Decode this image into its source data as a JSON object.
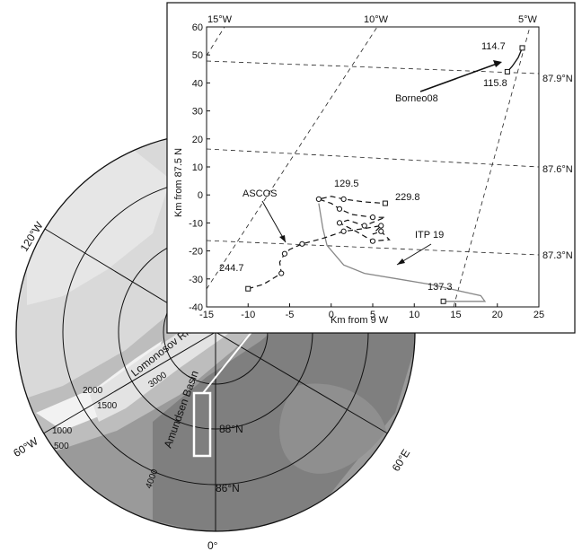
{
  "map": {
    "meridian_labels": [
      "120°W",
      "60°W",
      "0°",
      "60°E"
    ],
    "latitude_labels": [
      "88°N",
      "86°N"
    ],
    "feature_labels": [
      "Lomonosov Ridge",
      "Amundsen Basin"
    ],
    "depth_labels": [
      "2000",
      "1500",
      "1000",
      "500",
      "3000",
      "4000"
    ],
    "colors": {
      "shelf": "#f2f2f2",
      "slope_light": "#d9d9d9",
      "slope_mid": "#bdbdbd",
      "basin_mid": "#9a9a9a",
      "basin_deep": "#7f7f7f",
      "frame": "#ffffff"
    }
  },
  "inset": {
    "top_lon_labels": [
      "15°W",
      "10°W",
      "5°W"
    ],
    "right_lat_labels": [
      "87.9°N",
      "87.6°N",
      "87.3°N"
    ],
    "ylabel": "Km from 87.5 N",
    "xlabel": "Km from 9 W",
    "x_ticks": [
      "-15",
      "-10",
      "-5",
      "0",
      "5",
      "10",
      "15",
      "20",
      "25"
    ],
    "y_ticks": [
      "60",
      "50",
      "40",
      "30",
      "20",
      "10",
      "0",
      "-10",
      "-20",
      "-30",
      "-40"
    ],
    "tracks": {
      "ascos": {
        "name": "ASCOS",
        "points": [
          [
            -10,
            -33.5
          ],
          [
            -8.2,
            -32
          ],
          [
            -6,
            -28
          ],
          [
            -6.2,
            -24
          ],
          [
            -5.6,
            -21
          ],
          [
            -5,
            -19.5
          ],
          [
            -3.5,
            -17.5
          ],
          [
            -1,
            -15.5
          ],
          [
            1.5,
            -13
          ],
          [
            4,
            -12
          ],
          [
            6,
            -11
          ],
          [
            5,
            -14
          ],
          [
            6,
            -13
          ],
          [
            7,
            -16
          ],
          [
            5,
            -16.5
          ],
          [
            3,
            -13
          ],
          [
            1,
            -10
          ],
          [
            2,
            -9
          ],
          [
            4,
            -11
          ],
          [
            6.5,
            -8
          ],
          [
            5,
            -8
          ],
          [
            2.5,
            -7
          ],
          [
            1,
            -5
          ],
          [
            0,
            -3
          ],
          [
            -1.5,
            -1.5
          ],
          [
            0,
            -0.5
          ],
          [
            1.5,
            -1.5
          ],
          [
            4,
            -2.5
          ],
          [
            6.5,
            -3
          ]
        ],
        "start_label": "129.5",
        "end_label": "229.8",
        "left_label": "244.7"
      },
      "itp": {
        "name": "ITP 19",
        "points": [
          [
            -1.5,
            -3
          ],
          [
            -1,
            -12
          ],
          [
            -0.5,
            -18
          ],
          [
            1.5,
            -25
          ],
          [
            4,
            -28
          ],
          [
            8,
            -30
          ],
          [
            12,
            -32
          ],
          [
            15,
            -34
          ],
          [
            18,
            -36
          ],
          [
            18.5,
            -38
          ],
          [
            16,
            -38
          ],
          [
            13.5,
            -38
          ]
        ],
        "end_label": "137.3"
      },
      "borneo": {
        "name": "Borneo08",
        "points": [
          [
            23,
            52.5
          ],
          [
            22.5,
            49
          ],
          [
            21.8,
            46
          ],
          [
            21.2,
            44
          ]
        ],
        "start_label": "114.7",
        "end_label": "115.8"
      }
    }
  }
}
